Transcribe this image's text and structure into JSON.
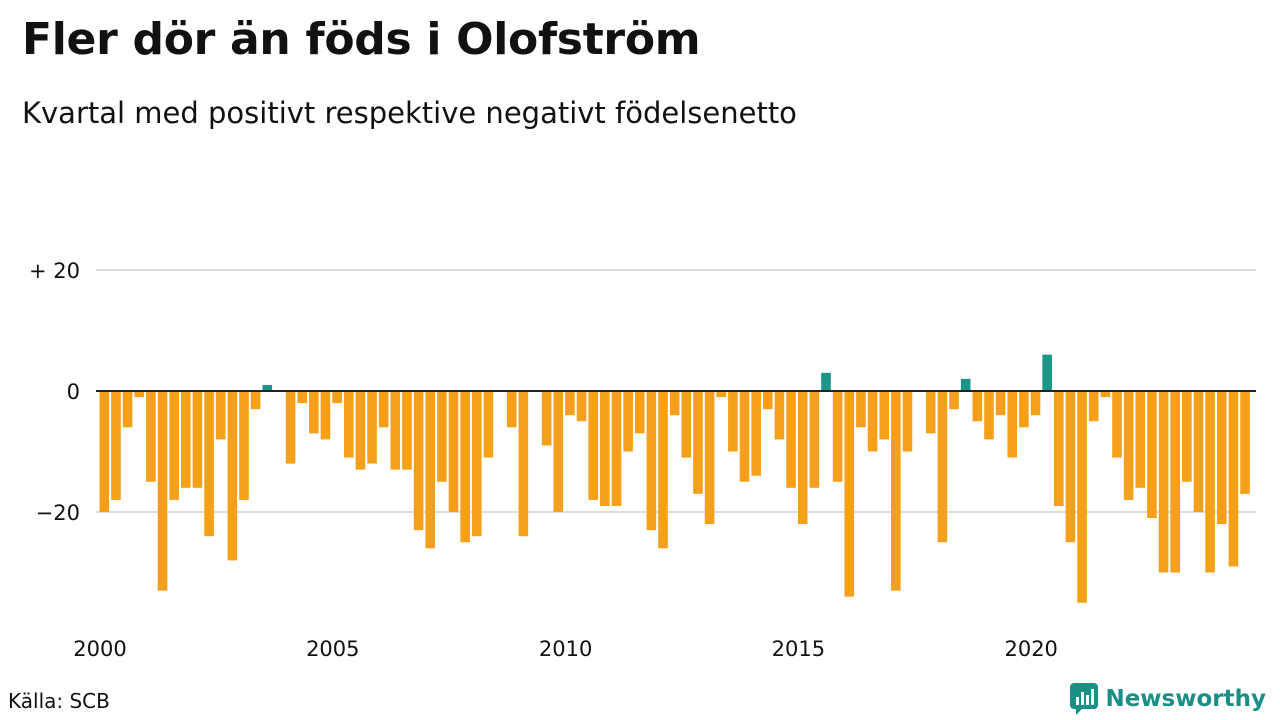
{
  "header": {
    "title": "Fler dör än föds i Olofström",
    "subtitle": "Kvartal med positivt respektive negativt födelsenetto"
  },
  "footer": {
    "source": "Källa: SCB",
    "brand": "Newsworthy"
  },
  "colors": {
    "negative": "#f5a01a",
    "positive": "#1a9688",
    "grid": "#dddddd",
    "baseline": "#222222",
    "brand": "#1a8f86"
  },
  "icons": {
    "brand_logo": "newsworthy-logo-icon"
  },
  "chart_data": {
    "type": "bar",
    "x_start": "2000 Q1",
    "quarters_per_year": 4,
    "xticks": [
      2000,
      2005,
      2010,
      2015,
      2020
    ],
    "yticks": [
      20,
      0,
      -20
    ],
    "ytick_labels": [
      "+ 20",
      "0",
      "−20"
    ],
    "ylim": [
      -36,
      22
    ],
    "grid": true,
    "values": [
      -20,
      -18,
      -6,
      -1,
      -15,
      -33,
      -18,
      -16,
      -16,
      -24,
      -8,
      -28,
      -18,
      -3,
      1,
      0,
      -12,
      -2,
      -7,
      -8,
      -2,
      -11,
      -13,
      -12,
      -6,
      -13,
      -13,
      -23,
      -26,
      -15,
      -20,
      -25,
      -24,
      -11,
      0,
      -6,
      -24,
      0,
      -9,
      -20,
      -4,
      -5,
      -18,
      -19,
      -19,
      -10,
      -7,
      -23,
      -26,
      -4,
      -11,
      -17,
      -22,
      -1,
      -10,
      -15,
      -14,
      -3,
      -8,
      -16,
      -22,
      -16,
      3,
      -15,
      -34,
      -6,
      -10,
      -8,
      -33,
      -10,
      0,
      -7,
      -25,
      -3,
      2,
      -5,
      -8,
      -4,
      -11,
      -6,
      -4,
      6,
      -19,
      -25,
      -35,
      -5,
      -1,
      -11,
      -18,
      -16,
      -21,
      -30,
      -30,
      -15,
      -20,
      -30,
      -22,
      -29,
      -17
    ]
  }
}
